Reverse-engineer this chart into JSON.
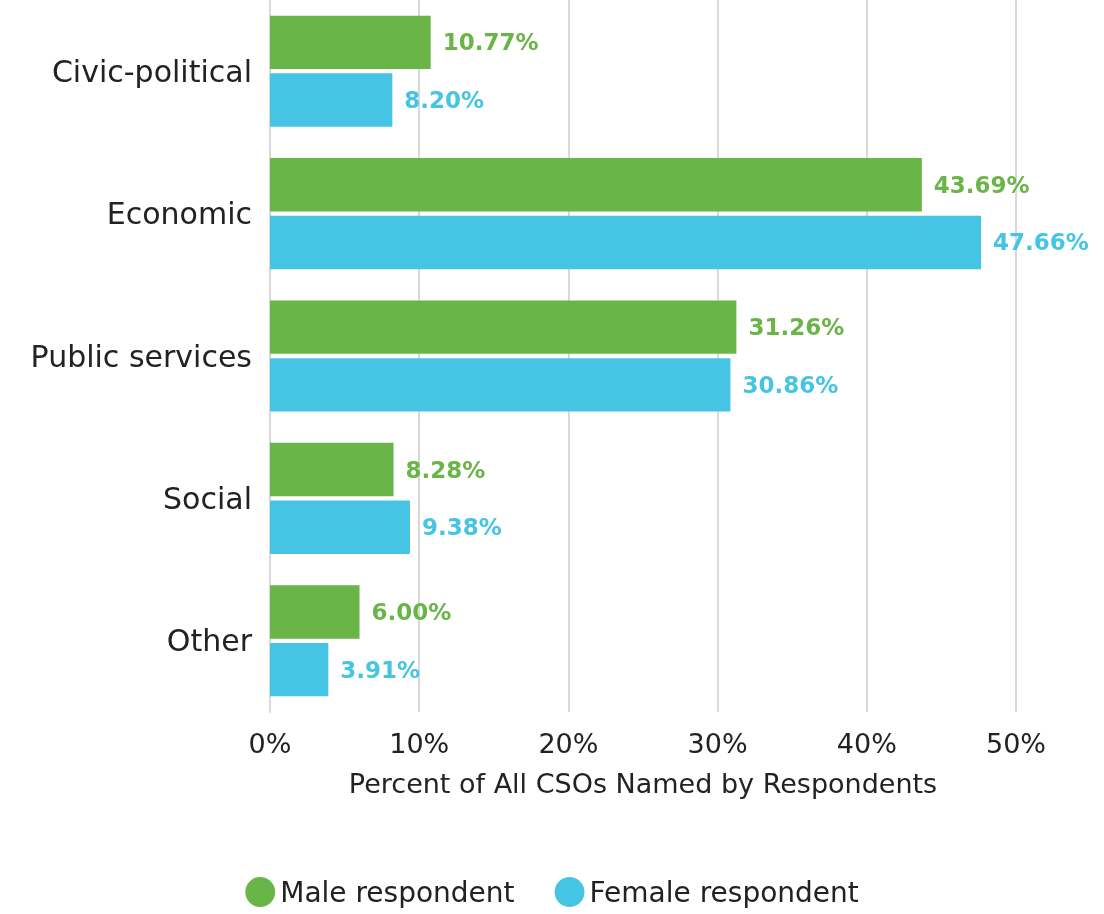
{
  "chart_data": {
    "type": "bar",
    "orientation": "horizontal",
    "xlabel": "Percent of All CSOs Named by Respondents",
    "categories": [
      "Civic-political",
      "Economic",
      "Public services",
      "Social",
      "Other"
    ],
    "series": [
      {
        "name": "Male respondent",
        "color": "#6ab547",
        "values": [
          10.77,
          43.69,
          31.26,
          8.28,
          6.0
        ],
        "value_labels": [
          "10.77%",
          "43.69%",
          "31.26%",
          "8.28%",
          "6.00%"
        ]
      },
      {
        "name": "Female respondent",
        "color": "#45c4e4",
        "values": [
          8.2,
          47.66,
          30.86,
          9.38,
          3.91
        ],
        "value_labels": [
          "8.20%",
          "47.66%",
          "30.86%",
          "9.38%",
          "3.91%"
        ]
      }
    ],
    "xlim": [
      0,
      50
    ],
    "xticks": [
      {
        "value": 0,
        "label": "0%"
      },
      {
        "value": 10,
        "label": "10%"
      },
      {
        "value": 20,
        "label": "20%"
      },
      {
        "value": 30,
        "label": "30%"
      },
      {
        "value": 40,
        "label": "40%"
      },
      {
        "value": 50,
        "label": "50%"
      }
    ],
    "grid": "x",
    "legend": "bottom"
  }
}
